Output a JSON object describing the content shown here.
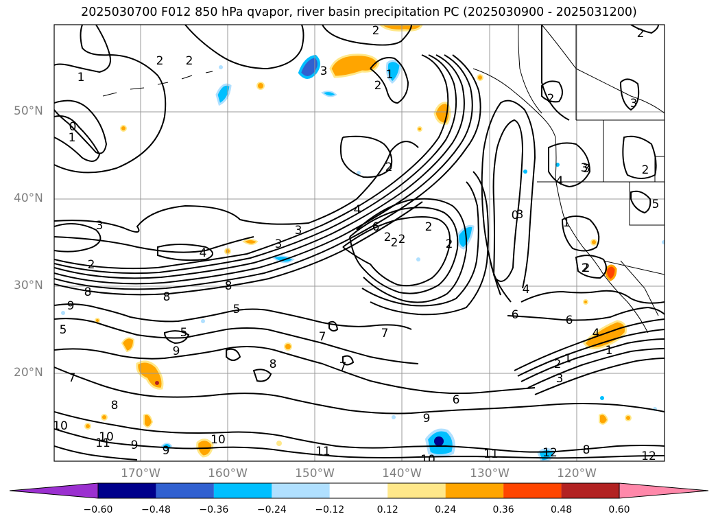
{
  "title": "2025030700 F012 850 hPa qvapor, river basin precipitation PC (2025030900 - 2025031200)",
  "lat_labels": [
    "50°N",
    "40°N",
    "30°N",
    "20°N"
  ],
  "lon_labels": [
    "170°W",
    "160°W",
    "150°W",
    "140°W",
    "130°W",
    "120°W"
  ],
  "colorbar": {
    "ticks": [
      "−0.60",
      "−0.48",
      "−0.36",
      "−0.24",
      "−0.12",
      "0.12",
      "0.24",
      "0.36",
      "0.48",
      "0.60"
    ],
    "colors": [
      "#9b30d0",
      "#00008b",
      "#3060d0",
      "#00bfff",
      "#b0e0ff",
      "#ffffff",
      "#ffe88a",
      "#ffa500",
      "#ff4500",
      "#b22222",
      "#ff88aa",
      "#ff88aa"
    ]
  },
  "contour_labels": [
    "0",
    "1",
    "2",
    "2",
    "1",
    "2",
    "3",
    "1",
    "2",
    "2",
    "2",
    "3",
    "3",
    "3",
    "4",
    "2",
    "3",
    "4",
    "3",
    "2",
    "3",
    "4",
    "5",
    "6",
    "2",
    "2",
    "2",
    "2",
    "0",
    "1",
    "2",
    "2",
    "4",
    "6",
    "6",
    "7",
    "7",
    "8",
    "8",
    "9",
    "9",
    "8",
    "6",
    "5",
    "5",
    "5",
    "7",
    "7",
    "8",
    "9",
    "10",
    "10",
    "11",
    "11",
    "10",
    "12",
    "8",
    "9",
    "10",
    "11",
    "2",
    "4",
    "1",
    "2",
    "1",
    "2",
    "3",
    "3",
    "8",
    "9",
    "12"
  ],
  "colors": {
    "contour": "#000000",
    "grid": "#999999",
    "coast": "#000000"
  }
}
